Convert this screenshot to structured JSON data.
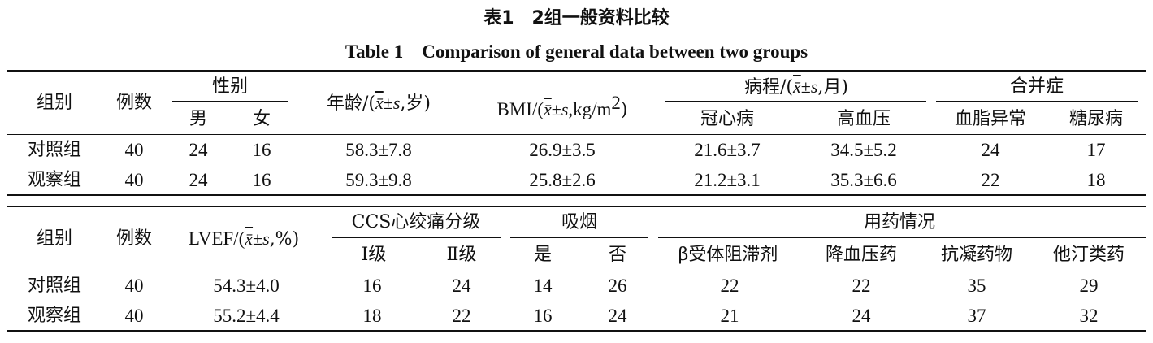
{
  "title_cn": "表1　2组一般资料比较",
  "title_en": "Table 1　Comparison of general data between two groups",
  "table1": {
    "group": "组别",
    "count": "例数",
    "sex": "性别",
    "male": "男",
    "female": "女",
    "age_prefix": "年龄/(",
    "age_suffix": ",岁)",
    "bmi_prefix": "BMI/(",
    "bmi_mid": ",kg/m",
    "bmi_sup": "2",
    "bmi_suffix": ")",
    "course_prefix": "病程/(",
    "course_suffix": ",月)",
    "chd": "冠心病",
    "hypertension": "高血压",
    "comorbidity": "合并症",
    "dyslipidemia": "血脂异常",
    "diabetes": "糖尿病",
    "rows": [
      {
        "group": "对照组",
        "count": "40",
        "male": "24",
        "female": "16",
        "age": "58.3±7.8",
        "bmi": "26.9±3.5",
        "chd": "21.6±3.7",
        "hypertension": "34.5±5.2",
        "dyslipidemia": "24",
        "diabetes": "17"
      },
      {
        "group": "观察组",
        "count": "40",
        "male": "24",
        "female": "16",
        "age": "59.3±9.8",
        "bmi": "25.8±2.6",
        "chd": "21.2±3.1",
        "hypertension": "35.3±6.6",
        "dyslipidemia": "22",
        "diabetes": "18"
      }
    ]
  },
  "table2": {
    "group": "组别",
    "count": "例数",
    "lvef_prefix": "LVEF/(",
    "lvef_suffix": ",%)",
    "ccs": "CCS心绞痛分级",
    "grade1": "Ⅰ级",
    "grade2": "Ⅱ级",
    "smoking": "吸烟",
    "yes": "是",
    "no": "否",
    "medication": "用药情况",
    "beta_blocker": "β受体阻滞剂",
    "antihypertensive": "降血压药",
    "anticoagulant": "抗凝药物",
    "statin": "他汀类药",
    "rows": [
      {
        "group": "对照组",
        "count": "40",
        "lvef": "54.3±4.0",
        "grade1": "16",
        "grade2": "24",
        "yes": "14",
        "no": "26",
        "beta_blocker": "22",
        "antihypertensive": "22",
        "anticoagulant": "35",
        "statin": "29"
      },
      {
        "group": "观察组",
        "count": "40",
        "lvef": "55.2±4.4",
        "grade1": "18",
        "grade2": "22",
        "yes": "16",
        "no": "24",
        "beta_blocker": "21",
        "antihypertensive": "24",
        "anticoagulant": "37",
        "statin": "32"
      }
    ]
  },
  "stat_x": "x̄",
  "stat_pm": "±",
  "stat_s": "s"
}
